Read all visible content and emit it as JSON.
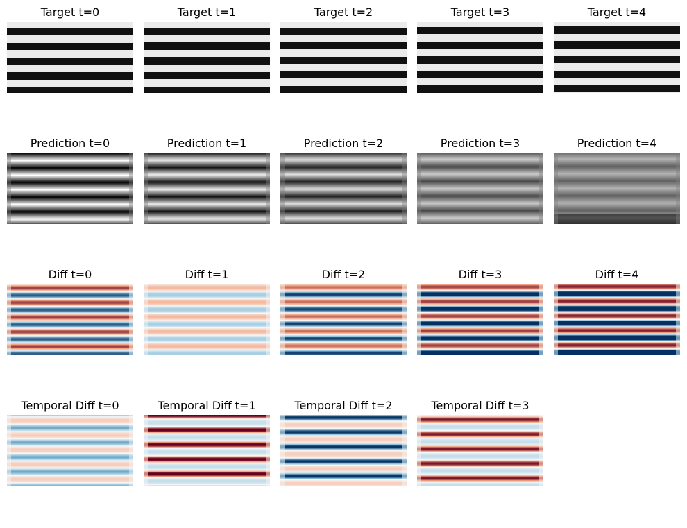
{
  "figure": {
    "rows": [
      {
        "id": "target",
        "panels": [
          {
            "title": "Target t=0"
          },
          {
            "title": "Target t=1"
          },
          {
            "title": "Target t=2"
          },
          {
            "title": "Target t=3"
          },
          {
            "title": "Target t=4"
          }
        ]
      },
      {
        "id": "prediction",
        "panels": [
          {
            "title": "Prediction t=0"
          },
          {
            "title": "Prediction t=1"
          },
          {
            "title": "Prediction t=2"
          },
          {
            "title": "Prediction t=3"
          },
          {
            "title": "Prediction t=4"
          }
        ]
      },
      {
        "id": "diff",
        "panels": [
          {
            "title": "Diff t=0"
          },
          {
            "title": "Diff t=1"
          },
          {
            "title": "Diff t=2"
          },
          {
            "title": "Diff t=3"
          },
          {
            "title": "Diff t=4"
          }
        ]
      },
      {
        "id": "temporal-diff",
        "panels": [
          {
            "title": "Temporal Diff t=0"
          },
          {
            "title": "Temporal Diff t=1"
          },
          {
            "title": "Temporal Diff t=2"
          },
          {
            "title": "Temporal Diff t=3"
          }
        ]
      }
    ]
  },
  "chart_data": {
    "type": "heatmap",
    "colormaps": {
      "target": "gray",
      "prediction": "gray",
      "diff": "RdBu",
      "temporal-diff": "RdBu"
    },
    "axes_visible": false
  }
}
